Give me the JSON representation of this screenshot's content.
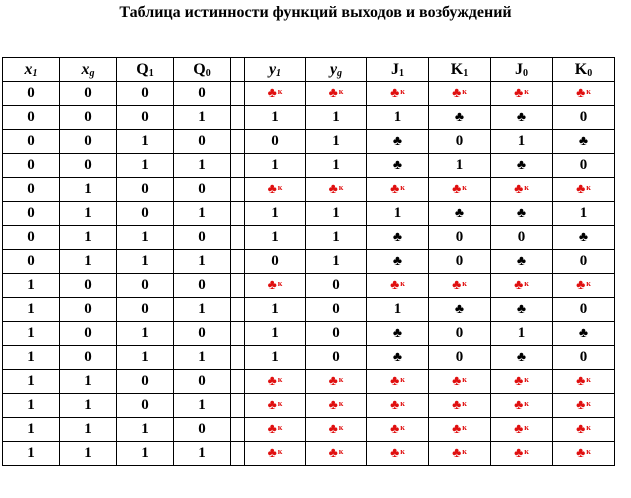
{
  "title": "Таблица истинности функций выходов и возбуждений",
  "headers": [
    {
      "base": "x",
      "sub": "1",
      "italic": true
    },
    {
      "base": "x",
      "sub": "g",
      "italic": true
    },
    {
      "base": "Q",
      "sub": "1",
      "italic": false
    },
    {
      "base": "Q",
      "sub": "0",
      "italic": false
    },
    {
      "base": "",
      "sub": "",
      "italic": false
    },
    {
      "base": "y",
      "sub": "1",
      "italic": true
    },
    {
      "base": "y",
      "sub": "g",
      "italic": true
    },
    {
      "base": "J",
      "sub": "1",
      "italic": false
    },
    {
      "base": "K",
      "sub": "1",
      "italic": false
    },
    {
      "base": "J",
      "sub": "0",
      "italic": false
    },
    {
      "base": "K",
      "sub": "0",
      "italic": false
    }
  ],
  "symbols": {
    "club": "♣",
    "k": "к"
  },
  "rows": [
    [
      "0",
      "0",
      "0",
      "0",
      "RK",
      "RK",
      "RK",
      "RK",
      "RK",
      "RK"
    ],
    [
      "0",
      "0",
      "0",
      "1",
      "1",
      "1",
      "1",
      "C",
      "C",
      "0"
    ],
    [
      "0",
      "0",
      "1",
      "0",
      "0",
      "1",
      "C",
      "0",
      "1",
      "C"
    ],
    [
      "0",
      "0",
      "1",
      "1",
      "1",
      "1",
      "C",
      "1",
      "C",
      "0"
    ],
    [
      "0",
      "1",
      "0",
      "0",
      "RK",
      "RK",
      "RK",
      "RK",
      "RK",
      "RK"
    ],
    [
      "0",
      "1",
      "0",
      "1",
      "1",
      "1",
      "1",
      "C",
      "C",
      "1"
    ],
    [
      "0",
      "1",
      "1",
      "0",
      "1",
      "1",
      "C",
      "0",
      "0",
      "C"
    ],
    [
      "0",
      "1",
      "1",
      "1",
      "0",
      "1",
      "C",
      "0",
      "C",
      "0"
    ],
    [
      "1",
      "0",
      "0",
      "0",
      "RK",
      "0",
      "RK",
      "RK",
      "RK",
      "RK"
    ],
    [
      "1",
      "0",
      "0",
      "1",
      "1",
      "0",
      "1",
      "C",
      "C",
      "0"
    ],
    [
      "1",
      "0",
      "1",
      "0",
      "1",
      "0",
      "C",
      "0",
      "1",
      "C"
    ],
    [
      "1",
      "0",
      "1",
      "1",
      "1",
      "0",
      "C",
      "0",
      "C",
      "0"
    ],
    [
      "1",
      "1",
      "0",
      "0",
      "RK",
      "RK",
      "RK",
      "RK",
      "RK",
      "RK"
    ],
    [
      "1",
      "1",
      "0",
      "1",
      "RK",
      "RK",
      "RK",
      "RK",
      "RK",
      "RK"
    ],
    [
      "1",
      "1",
      "1",
      "0",
      "RK",
      "RK",
      "RK",
      "RK",
      "RK",
      "RK"
    ],
    [
      "1",
      "1",
      "1",
      "1",
      "RK",
      "RK",
      "RK",
      "RK",
      "RK",
      "RK"
    ]
  ]
}
